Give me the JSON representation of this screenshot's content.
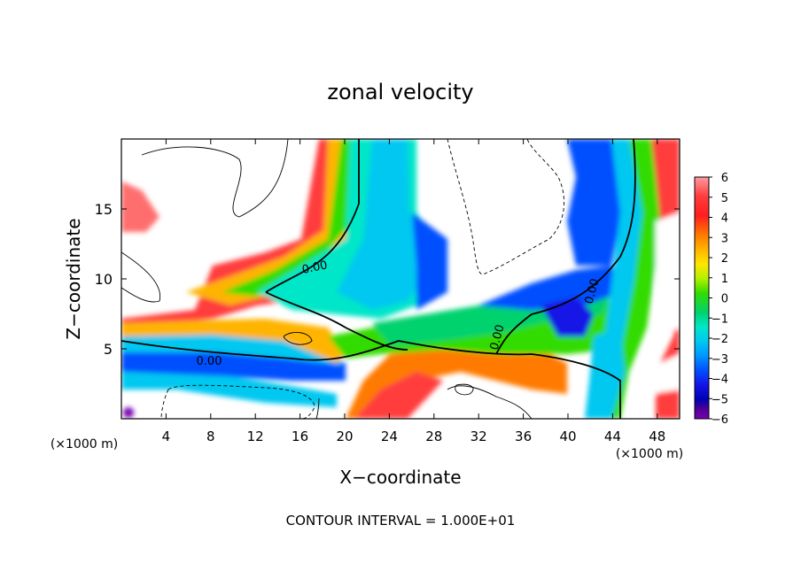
{
  "chart_data": {
    "type": "heatmap",
    "title": "zonal velocity",
    "xlabel": "X−coordinate",
    "ylabel": "Z−coordinate",
    "x_unit_left": "(×1000 m)",
    "x_unit_right": "(×1000 m)",
    "xlim": [
      0,
      50
    ],
    "ylim": [
      0,
      20
    ],
    "x_ticks": [
      "4",
      "8",
      "12",
      "16",
      "20",
      "24",
      "28",
      "32",
      "36",
      "40",
      "44",
      "48"
    ],
    "y_ticks": [
      "5",
      "10",
      "15"
    ],
    "colorbar": {
      "ticks": [
        "6",
        "5",
        "4",
        "3",
        "2",
        "1",
        "0",
        "−1",
        "−2",
        "−3",
        "−4",
        "−5",
        "−6"
      ],
      "range": [
        -6,
        6
      ],
      "colors": [
        "#ff9aa0",
        "#ff3c3c",
        "#ff1e1e",
        "#ff7a00",
        "#ffb400",
        "#ffe600",
        "#b4f000",
        "#32dc00",
        "#00d26e",
        "#00e6c8",
        "#00c8f0",
        "#0096ff",
        "#0050ff",
        "#1414e6",
        "#0000b4",
        "#500096",
        "#7800b4"
      ]
    },
    "contour_labels": [
      "0.00",
      "0.00",
      "0.00",
      "0.00"
    ],
    "grid": false,
    "note": "CONTOUR INTERVAL = 1.000E+01"
  }
}
